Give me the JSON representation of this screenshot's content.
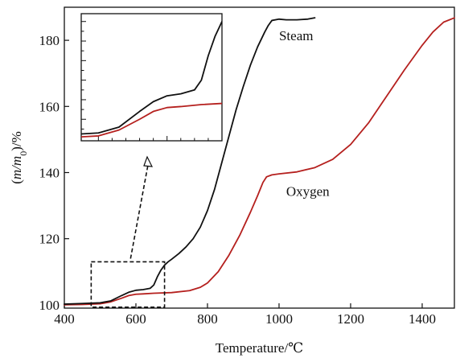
{
  "chart_data": {
    "type": "line",
    "title": "",
    "xlabel": "Temperature/℃",
    "ylabel": "(m/m0)/%",
    "xlim": [
      400,
      1490
    ],
    "ylim": [
      99,
      190
    ],
    "xticks": [
      400,
      600,
      800,
      1000,
      1200,
      1400
    ],
    "yticks": [
      100,
      120,
      140,
      160,
      180
    ],
    "grid": false,
    "legend": "none",
    "series": [
      {
        "name": "Steam",
        "color": "#111111",
        "x": [
          400,
          450,
          500,
          530,
          560,
          580,
          600,
          620,
          640,
          650,
          660,
          670,
          680,
          690,
          700,
          720,
          740,
          760,
          780,
          800,
          820,
          840,
          860,
          880,
          900,
          920,
          940,
          960,
          970,
          980,
          1000,
          1020,
          1050,
          1080,
          1100
        ],
        "y": [
          100.2,
          100.4,
          100.6,
          101.2,
          102.8,
          103.8,
          104.4,
          104.6,
          105.0,
          106.0,
          108.5,
          110.5,
          112.0,
          113.0,
          113.8,
          115.5,
          117.5,
          120.0,
          123.5,
          128.5,
          135.0,
          143.0,
          151.0,
          159.0,
          166.0,
          172.5,
          178.0,
          182.5,
          184.5,
          186.0,
          186.4,
          186.2,
          186.2,
          186.4,
          186.8
        ]
      },
      {
        "name": "Oxygen",
        "color": "#b5201e",
        "x": [
          400,
          450,
          500,
          530,
          560,
          580,
          600,
          620,
          650,
          700,
          750,
          780,
          800,
          830,
          860,
          890,
          920,
          940,
          955,
          965,
          980,
          1000,
          1050,
          1100,
          1150,
          1200,
          1250,
          1300,
          1350,
          1400,
          1430,
          1460,
          1490
        ],
        "y": [
          100.0,
          100.1,
          100.3,
          100.9,
          102.0,
          102.8,
          103.2,
          103.3,
          103.5,
          103.7,
          104.3,
          105.3,
          106.6,
          110.0,
          115.0,
          121.0,
          128.0,
          133.0,
          137.0,
          138.7,
          139.3,
          139.6,
          140.2,
          141.5,
          144.0,
          148.5,
          155.0,
          163.0,
          171.0,
          178.5,
          182.5,
          185.5,
          186.8
        ]
      }
    ],
    "annotations": [
      {
        "text": "Steam",
        "x": 1000,
        "y": 180
      },
      {
        "text": "Oxygen",
        "x": 1020,
        "y": 133
      }
    ],
    "inset": {
      "region": {
        "x0": 475,
        "x1": 680,
        "y0": 99.3,
        "y1": 113
      },
      "description_shown": "zoom of dashed box, arrow pointing to inset"
    }
  }
}
